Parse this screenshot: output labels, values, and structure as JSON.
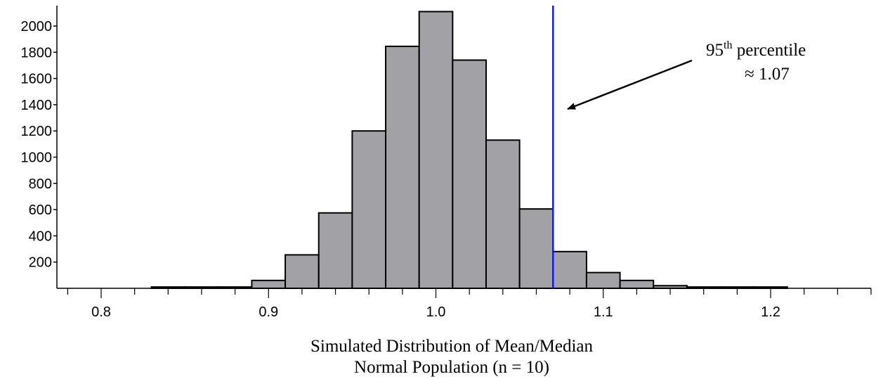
{
  "chart_data": {
    "type": "bar",
    "bin_width": 0.02,
    "bins": [
      {
        "x0": 0.83,
        "x1": 0.85,
        "count": 10
      },
      {
        "x0": 0.85,
        "x1": 0.87,
        "count": 10
      },
      {
        "x0": 0.87,
        "x1": 0.89,
        "count": 10
      },
      {
        "x0": 0.89,
        "x1": 0.91,
        "count": 60
      },
      {
        "x0": 0.91,
        "x1": 0.93,
        "count": 255
      },
      {
        "x0": 0.93,
        "x1": 0.95,
        "count": 575
      },
      {
        "x0": 0.95,
        "x1": 0.97,
        "count": 1200
      },
      {
        "x0": 0.97,
        "x1": 0.99,
        "count": 1845
      },
      {
        "x0": 0.99,
        "x1": 1.01,
        "count": 2110
      },
      {
        "x0": 1.01,
        "x1": 1.03,
        "count": 1740
      },
      {
        "x0": 1.03,
        "x1": 1.05,
        "count": 1130
      },
      {
        "x0": 1.05,
        "x1": 1.07,
        "count": 605
      },
      {
        "x0": 1.07,
        "x1": 1.09,
        "count": 280
      },
      {
        "x0": 1.09,
        "x1": 1.11,
        "count": 120
      },
      {
        "x0": 1.11,
        "x1": 1.13,
        "count": 60
      },
      {
        "x0": 1.13,
        "x1": 1.15,
        "count": 20
      },
      {
        "x0": 1.15,
        "x1": 1.17,
        "count": 10
      },
      {
        "x0": 1.17,
        "x1": 1.19,
        "count": 10
      },
      {
        "x0": 1.19,
        "x1": 1.21,
        "count": 10
      }
    ],
    "xlim": [
      0.78,
      1.26
    ],
    "ylim": [
      0,
      2200
    ],
    "x_ticks": [
      0.8,
      0.9,
      1.0,
      1.1,
      1.2
    ],
    "x_tick_labels": [
      "0.8",
      "0.9",
      "1.0",
      "1.1",
      "1.2"
    ],
    "x_minor_step": 0.02,
    "y_ticks": [
      200,
      400,
      600,
      800,
      1000,
      1200,
      1400,
      1600,
      1800,
      2000
    ],
    "y_tick_labels": [
      "200",
      "400",
      "600",
      "800",
      "1000",
      "1200",
      "1400",
      "1600",
      "1800",
      "2000"
    ],
    "reference_line": {
      "x": 1.07,
      "color": "#1a1adb"
    },
    "annotation": {
      "base": "95",
      "superscript": "th",
      "text": "percentile",
      "value_line": "≈ 1.07"
    },
    "caption_lines": [
      "Simulated Distribution of Mean/Median",
      "Normal Population (n = 10)"
    ],
    "grid": false,
    "bar_color": "#a2a2a6"
  }
}
